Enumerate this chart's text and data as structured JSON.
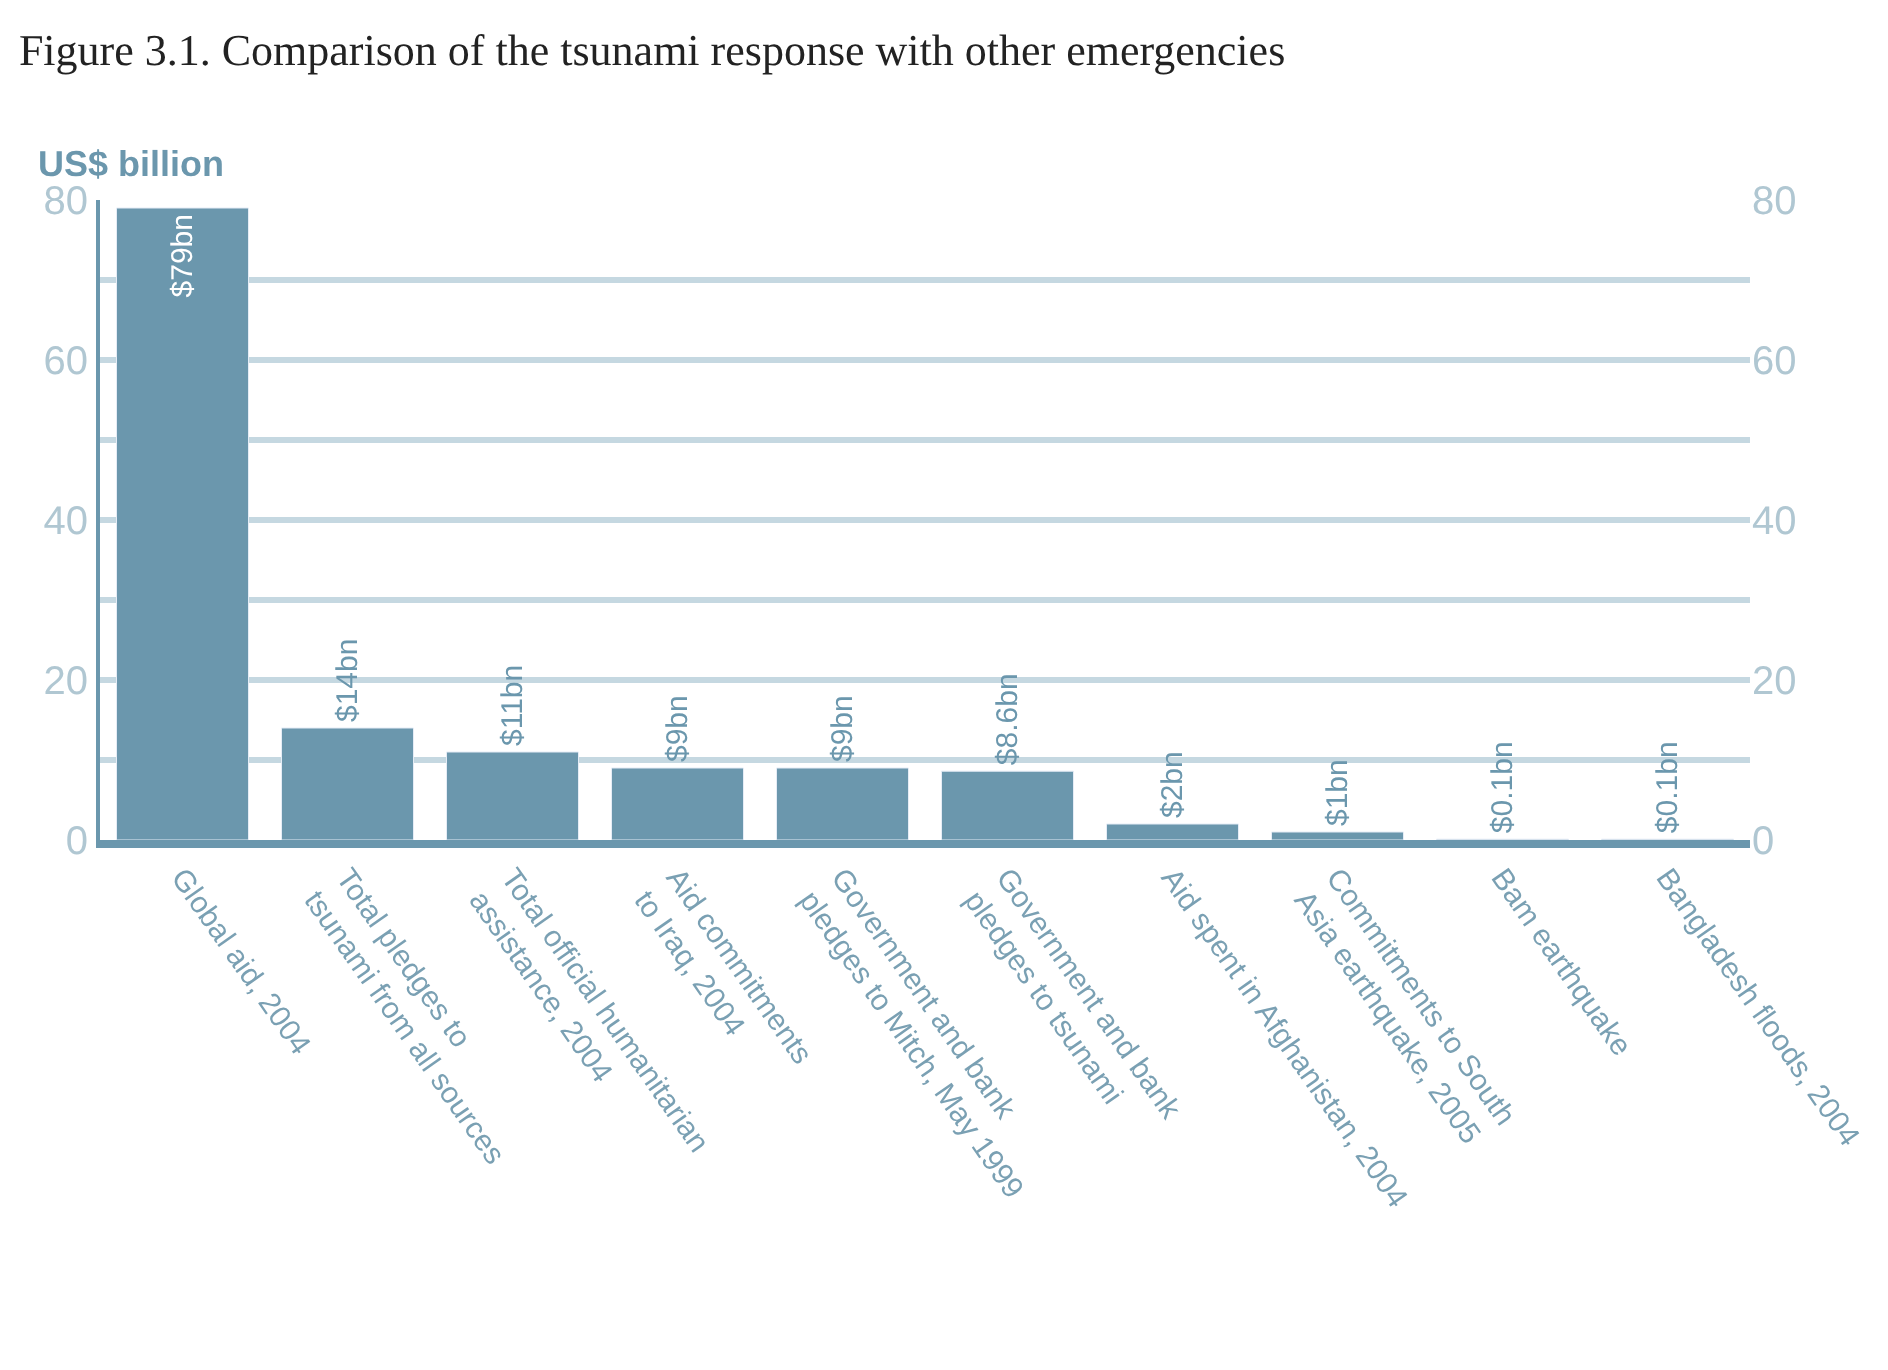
{
  "chart_data": {
    "type": "bar",
    "title": "Figure 3.1. Comparison of the tsunami response with other emergencies",
    "ylabel": "US$ billion",
    "categories": [
      "Global aid, 2004",
      "Total pledges to\ntsunami from all sources",
      "Total official humanitarian\nassistance, 2004",
      "Aid commitments\nto Iraq, 2004",
      "Government and bank\npledges to Mitch, May 1999",
      "Government and bank\npledges to tsunami",
      "Aid spent in Afghanistan, 2004",
      "Commitments to South\nAsia earthquake, 2005",
      "Bam earthquake",
      "Bangladesh floods, 2004"
    ],
    "values": [
      79,
      14,
      11,
      9,
      9,
      8.6,
      2,
      1,
      0.1,
      0.1
    ],
    "value_labels": [
      "$79bn",
      "$14bn",
      "$11bn",
      "$9bn",
      "$9bn",
      "$8.6bn",
      "$2bn",
      "$1bn",
      "$0.1bn",
      "$0.1bn"
    ],
    "color": "#6b97ad",
    "ylim": [
      0,
      80
    ],
    "yticks": [
      0,
      {
        "value": 10,
        "label": null
      },
      20,
      {
        "value": 30,
        "label": null
      },
      40,
      {
        "value": 50,
        "label": null
      },
      60,
      {
        "value": 70,
        "label": null
      },
      80
    ],
    "y2lim": [
      0,
      80
    ],
    "y2ticks": [
      0,
      20,
      40,
      60,
      80
    ],
    "grid": true
  }
}
